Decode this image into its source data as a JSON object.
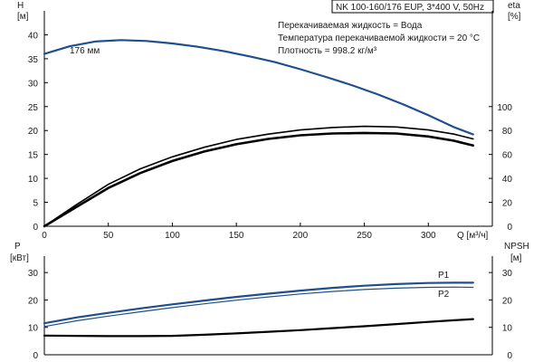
{
  "header": {
    "title": "NK 100-160/176 EUP, 3*400 V, 50Hz"
  },
  "info_lines": [
    "Перекачиваемая жидкость = Вода",
    "Температура перекачиваемой жидкости = 20 °C",
    "Плотность = 998.2 кг/м³"
  ],
  "colors": {
    "accent_blue": "#1f4f8f",
    "black": "#000000"
  },
  "chart_data": [
    {
      "type": "line",
      "x_label": "Q [м³/ч]",
      "xlim": [
        0,
        350
      ],
      "x_ticks": [
        0,
        50,
        100,
        150,
        200,
        250,
        300
      ],
      "y_left": {
        "label_top": "H",
        "label_unit": "[м]",
        "lim": [
          0,
          45
        ],
        "ticks": [
          0,
          5,
          10,
          15,
          20,
          25,
          30,
          35,
          40
        ]
      },
      "y_right": {
        "label_top": "eta",
        "label_unit": "[%]",
        "lim": [
          0,
          180
        ],
        "ticks": [
          0,
          20,
          40,
          60,
          80,
          100
        ]
      },
      "annotations": [
        {
          "text": "176 мм",
          "x": 32,
          "y": 38.5
        }
      ],
      "series": [
        {
          "axis": "left",
          "color": "#1f4f8f",
          "width": 2.2,
          "x": [
            0,
            20,
            40,
            60,
            80,
            100,
            120,
            140,
            160,
            180,
            200,
            220,
            240,
            260,
            280,
            300,
            320,
            335
          ],
          "y": [
            36,
            37.6,
            38.6,
            38.9,
            38.7,
            38.2,
            37.5,
            36.6,
            35.5,
            34.3,
            32.8,
            31.2,
            29.5,
            27.6,
            25.5,
            23.2,
            20.7,
            19.2
          ]
        },
        {
          "axis": "right",
          "color": "#000000",
          "width": 1.6,
          "x": [
            0,
            25,
            50,
            75,
            100,
            125,
            150,
            175,
            200,
            225,
            250,
            275,
            300,
            320,
            335
          ],
          "y": [
            0,
            18,
            35,
            48,
            58,
            66,
            72.5,
            77,
            80.5,
            82.5,
            83.5,
            83,
            80.5,
            77,
            73
          ]
        },
        {
          "axis": "right",
          "color": "#000000",
          "width": 2.6,
          "x": [
            0,
            25,
            50,
            75,
            100,
            125,
            150,
            175,
            200,
            225,
            250,
            275,
            300,
            320,
            335
          ],
          "y": [
            0,
            16,
            32,
            44.5,
            54.5,
            62.5,
            68.5,
            73,
            76,
            77.5,
            78,
            77.5,
            75,
            71.5,
            67.5
          ]
        }
      ]
    },
    {
      "type": "line",
      "xlim": [
        0,
        350
      ],
      "y_left": {
        "label_top": "P",
        "label_unit": "[кВт]",
        "lim": [
          0,
          36
        ],
        "ticks": [
          0,
          10,
          20,
          30
        ]
      },
      "y_right": {
        "label_top": "NPSH",
        "label_unit": "[м]",
        "lim": [
          0,
          36
        ],
        "ticks": [
          0,
          10,
          20,
          30
        ]
      },
      "series": [
        {
          "name": "P1",
          "axis": "left",
          "color": "#1f4f8f",
          "width": 2.2,
          "x": [
            0,
            25,
            50,
            75,
            100,
            125,
            150,
            175,
            200,
            225,
            250,
            275,
            300,
            320,
            335
          ],
          "y": [
            11.5,
            13.6,
            15.3,
            16.9,
            18.4,
            19.8,
            21.1,
            22.3,
            23.4,
            24.4,
            25.2,
            25.8,
            26.2,
            26.3,
            26.3
          ]
        },
        {
          "name": "P2",
          "axis": "left",
          "color": "#1f4f8f",
          "width": 1.2,
          "x": [
            0,
            25,
            50,
            75,
            100,
            125,
            150,
            175,
            200,
            225,
            250,
            275,
            300,
            320,
            335
          ],
          "y": [
            10.3,
            12.4,
            14.1,
            15.7,
            17.2,
            18.6,
            19.9,
            21.1,
            22.2,
            23.1,
            23.8,
            24.3,
            24.6,
            24.7,
            24.6
          ]
        },
        {
          "axis": "right",
          "color": "#000000",
          "width": 2.2,
          "x": [
            0,
            25,
            50,
            75,
            100,
            125,
            150,
            175,
            200,
            225,
            250,
            275,
            300,
            320,
            335
          ],
          "y": [
            7,
            6.9,
            6.8,
            6.8,
            6.9,
            7.3,
            7.8,
            8.4,
            9.0,
            9.7,
            10.4,
            11.2,
            12.0,
            12.6,
            13.0
          ]
        }
      ]
    }
  ]
}
